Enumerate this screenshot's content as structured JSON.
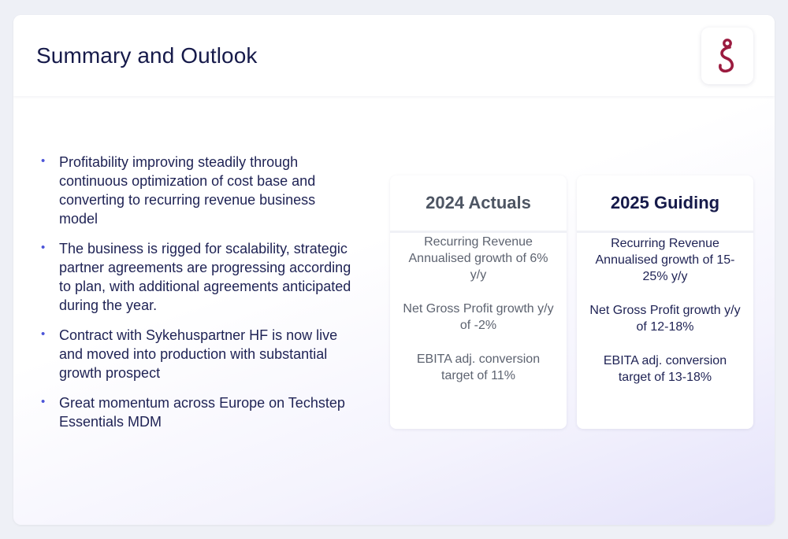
{
  "header": {
    "title": "Summary and Outlook",
    "logo_icon": "techstep-logo-icon",
    "logo_color": "#9b1b3f"
  },
  "bullets": [
    "Profitability improving steadily through continuous optimization of cost base and converting to recurring revenue business model",
    "The business is rigged for scalability, strategic partner agreements are progressing according to plan, with additional agreements anticipated during the year.",
    "Contract with Sykehuspartner HF is now live and moved into production with substantial growth prospect",
    "Great momentum across Europe on Techstep Essentials MDM"
  ],
  "cards": {
    "actuals": {
      "title": "2024 Actuals",
      "metrics": [
        "Recurring Revenue Annualised growth of 6% y/y",
        "Net Gross Profit growth y/y of -2%",
        "EBITA adj. conversion target of 11%"
      ]
    },
    "guiding": {
      "title": "2025 Guiding",
      "metrics": [
        "Recurring Revenue Annualised growth of 15-25% y/y",
        "Net Gross Profit growth y/y of 12-18%",
        "EBITA adj. conversion target of 13-18%"
      ]
    }
  },
  "colors": {
    "title_text": "#161a4a",
    "bullet_dot": "#4c55d8",
    "actuals_text": "#5d6370",
    "guiding_text": "#1e2254"
  }
}
